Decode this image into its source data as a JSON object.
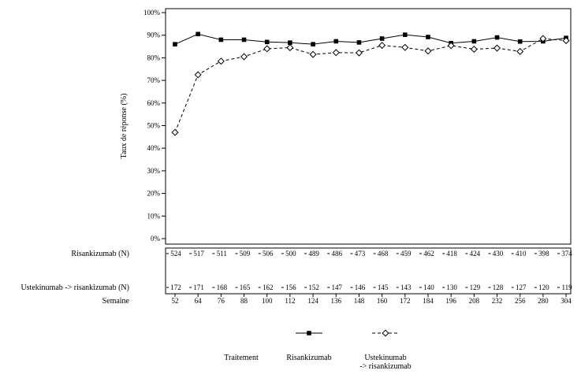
{
  "chart_data": {
    "type": "line",
    "ylabel": "Taux de réponse (%)",
    "ylim": [
      0,
      100
    ],
    "yticks": [
      "0%",
      "10%",
      "20%",
      "30%",
      "40%",
      "50%",
      "60%",
      "70%",
      "80%",
      "90%",
      "100%"
    ],
    "x": [
      52,
      64,
      76,
      88,
      100,
      112,
      124,
      136,
      148,
      160,
      172,
      184,
      196,
      208,
      232,
      256,
      280,
      304
    ],
    "series": [
      {
        "name": "Risankizumab",
        "marker": "filled-square",
        "line": "solid",
        "values": [
          86,
          90.5,
          88,
          88,
          87,
          86.7,
          86,
          87.3,
          86.8,
          88.5,
          90.2,
          89.2,
          86.5,
          87.3,
          89,
          87.2,
          87.3,
          88.8
        ]
      },
      {
        "name": "Ustekinumab -> risankizumab",
        "name_lines": [
          "Ustekinumab",
          "-> risankizumab"
        ],
        "marker": "open-diamond",
        "line": "dashed",
        "values": [
          47,
          72.5,
          78.5,
          80.5,
          84,
          84.5,
          81.5,
          82.3,
          82.2,
          85.5,
          84.6,
          83,
          85.4,
          83.8,
          84.3,
          82.8,
          88.5,
          87.6
        ]
      }
    ],
    "n_table": {
      "rows": [
        {
          "label": "Risankizumab (N)",
          "values": [
            "524",
            "517",
            "511",
            "509",
            "506",
            "500",
            "489",
            "486",
            "473",
            "468",
            "459",
            "462",
            "418",
            "424",
            "430",
            "410",
            "398",
            "374"
          ]
        },
        {
          "label": "Ustekinumab -> risankizumab (N)",
          "values": [
            "172",
            "171",
            "168",
            "165",
            "162",
            "156",
            "152",
            "147",
            "146",
            "145",
            "143",
            "140",
            "130",
            "129",
            "128",
            "127",
            "120",
            "119"
          ]
        }
      ],
      "x_label": "Semaine",
      "x_values": [
        "52",
        "64",
        "76",
        "88",
        "100",
        "112",
        "124",
        "136",
        "148",
        "160",
        "172",
        "184",
        "196",
        "208",
        "232",
        "256",
        "280",
        "304"
      ]
    },
    "legend": {
      "title": "Traitement",
      "placement": "bottom"
    },
    "grid": false
  }
}
